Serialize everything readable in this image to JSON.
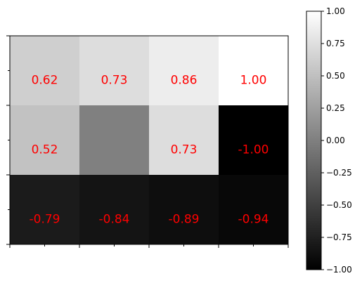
{
  "chart_data": {
    "type": "heatmap",
    "colormap": "gray",
    "vmin": -1.0,
    "vmax": 1.0,
    "label_color": "#ff0000",
    "rows": 3,
    "cols": 4,
    "values": [
      [
        0.62,
        0.73,
        0.86,
        1.0
      ],
      [
        0.52,
        0.0,
        0.73,
        -1.0
      ],
      [
        -0.79,
        -0.84,
        -0.89,
        -0.94
      ]
    ],
    "cell_labels": [
      [
        "0.62",
        "0.73",
        "0.86",
        "1.00"
      ],
      [
        "0.52",
        "",
        "0.73",
        "-1.00"
      ],
      [
        "-0.79",
        "-0.84",
        "-0.89",
        "-0.94"
      ]
    ],
    "x_tick_labels": [],
    "y_tick_labels": [],
    "colorbar": {
      "ticks": [
        1.0,
        0.75,
        0.5,
        0.25,
        0.0,
        -0.25,
        -0.5,
        -0.75,
        -1.0
      ],
      "tick_labels": [
        "1.00",
        "0.75",
        "0.50",
        "0.25",
        "0.00",
        "−0.25",
        "−0.50",
        "−0.75",
        "−1.00"
      ]
    }
  }
}
